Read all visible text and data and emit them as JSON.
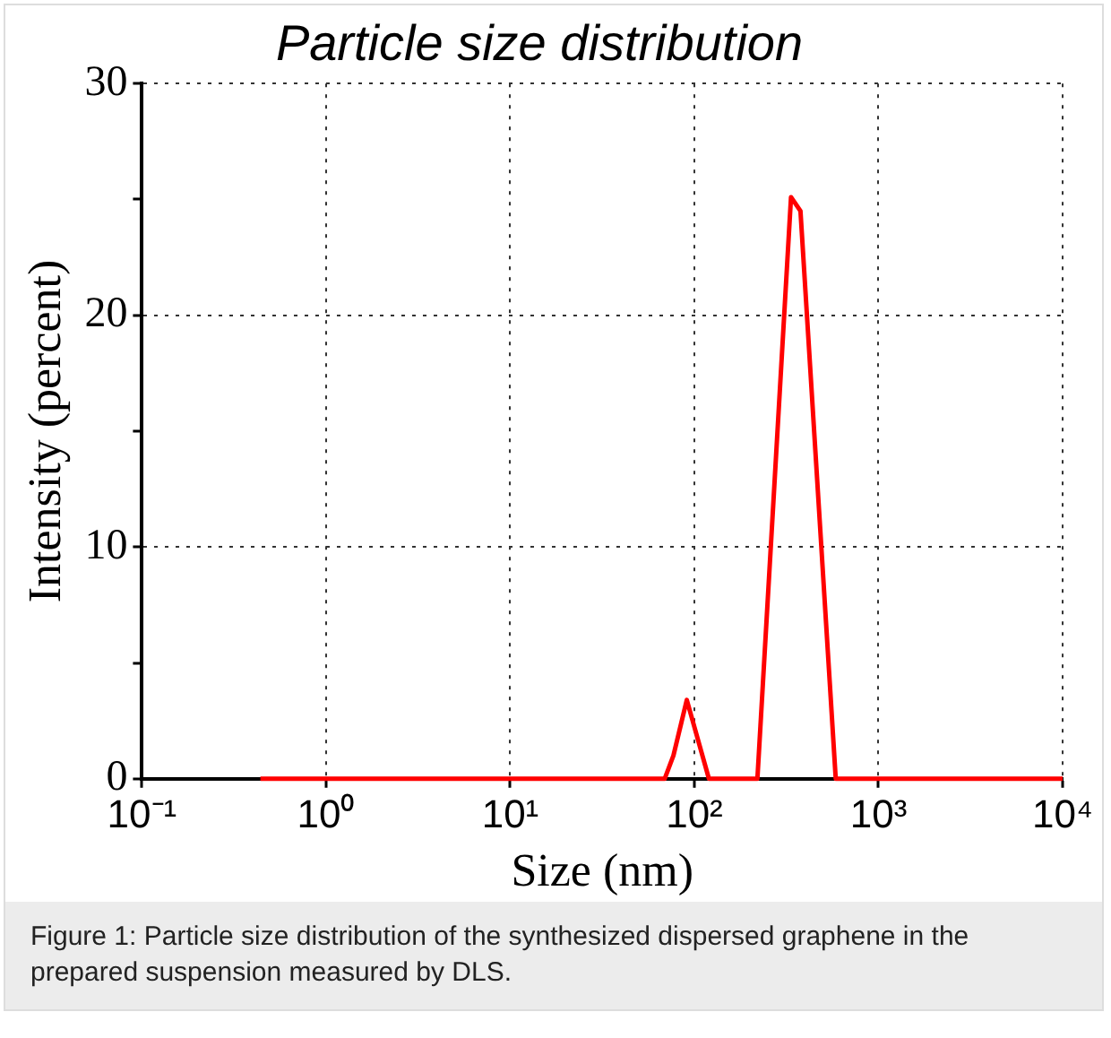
{
  "chart_data": {
    "type": "line",
    "title": "Particle size distribution",
    "xlabel": "Size (nm)",
    "ylabel": "Intensity (percent)",
    "x": [
      0.44,
      60,
      69,
      77,
      91,
      120,
      220,
      335,
      377,
      586,
      10000
    ],
    "series": [
      {
        "color": "#ff0000",
        "values": [
          0,
          0,
          0,
          1.0,
          3.4,
          0,
          0,
          25.1,
          24.5,
          0,
          0
        ]
      }
    ],
    "log": "x",
    "xlim": [
      0.1,
      10000
    ],
    "xticks": [
      {
        "value": 0.1,
        "label": "10⁻¹"
      },
      {
        "value": 1,
        "label": "10⁰"
      },
      {
        "value": 10,
        "label": "10¹"
      },
      {
        "value": 100,
        "label": "10²"
      },
      {
        "value": 1000,
        "label": "10³"
      },
      {
        "value": 10000,
        "label": "10⁴"
      }
    ],
    "ylim": [
      0,
      30
    ],
    "yticks": [
      0,
      {
        "value": 5,
        "label": null
      },
      10,
      {
        "value": 15,
        "label": null
      },
      20,
      {
        "value": 25,
        "label": null
      },
      30
    ],
    "grid": true,
    "legend": false,
    "marker": "none",
    "line_style": "solid",
    "annotations": [
      "Figure 1: Particle size distribution of the synthesized dispersed graphene in the prepared suspension measured by DLS."
    ]
  }
}
